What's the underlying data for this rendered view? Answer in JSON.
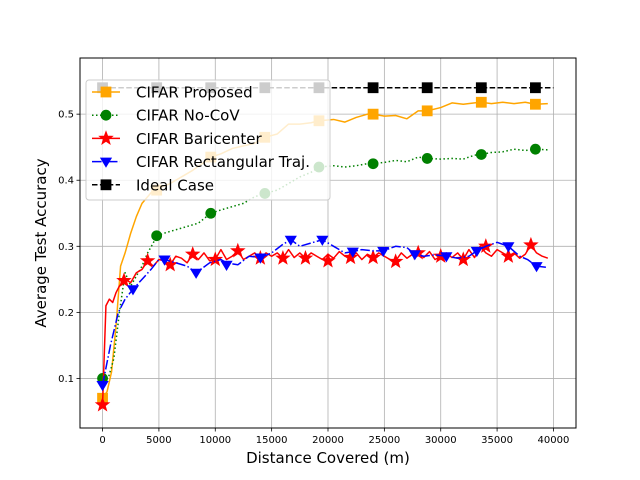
{
  "chart_data": {
    "type": "line",
    "title": "",
    "xlabel": "Distance Covered (m)",
    "ylabel": "Average Test Accuracy",
    "xlim": [
      -2000,
      42000
    ],
    "ylim": [
      0.025,
      0.585
    ],
    "xticks": [
      0,
      5000,
      10000,
      15000,
      20000,
      25000,
      30000,
      35000,
      40000
    ],
    "yticks": [
      0.1,
      0.2,
      0.3,
      0.4,
      0.5
    ],
    "grid": true,
    "legend_position": "upper-left",
    "series": [
      {
        "name": "CIFAR Proposed",
        "color": "#FFA500",
        "linestyle": "solid",
        "marker": "square",
        "x": [
          0,
          400,
          800,
          1200,
          1600,
          2000,
          2500,
          3000,
          3500,
          4000,
          4500,
          5000,
          6000,
          7000,
          8000,
          9000,
          9600,
          10500,
          11500,
          12500,
          13500,
          14400,
          15500,
          16500,
          17500,
          18500,
          19200,
          20500,
          21500,
          22500,
          23500,
          24000,
          25000,
          26000,
          27000,
          28000,
          28800,
          30000,
          31000,
          32000,
          33000,
          33600,
          34500,
          35500,
          36500,
          37500,
          38400,
          39500
        ],
        "y": [
          0.07,
          0.08,
          0.11,
          0.18,
          0.27,
          0.29,
          0.32,
          0.345,
          0.365,
          0.375,
          0.385,
          0.388,
          0.395,
          0.405,
          0.415,
          0.427,
          0.435,
          0.44,
          0.448,
          0.452,
          0.456,
          0.465,
          0.47,
          0.485,
          0.485,
          0.487,
          0.49,
          0.492,
          0.488,
          0.495,
          0.5,
          0.5,
          0.497,
          0.498,
          0.493,
          0.505,
          0.505,
          0.51,
          0.517,
          0.515,
          0.517,
          0.518,
          0.516,
          0.518,
          0.516,
          0.518,
          0.515,
          0.516
        ],
        "marker_x": [
          0,
          4800,
          9600,
          14400,
          19200,
          24000,
          28800,
          33600,
          38400
        ],
        "marker_y": [
          0.07,
          0.385,
          0.435,
          0.465,
          0.49,
          0.5,
          0.505,
          0.518,
          0.515
        ]
      },
      {
        "name": "CIFAR No-CoV",
        "color": "#008000",
        "linestyle": "dotted",
        "marker": "circle",
        "x": [
          0,
          500,
          1000,
          1500,
          2000,
          2500,
          3000,
          3500,
          4000,
          4500,
          4800,
          5500,
          6500,
          7500,
          8500,
          9600,
          10500,
          11500,
          12500,
          13500,
          14400,
          15500,
          16500,
          17500,
          18500,
          19200,
          20500,
          21500,
          22500,
          23500,
          24000,
          25000,
          26000,
          27000,
          28000,
          28800,
          30000,
          31000,
          32000,
          33000,
          33600,
          34500,
          35500,
          36500,
          37500,
          38400,
          39500
        ],
        "y": [
          0.1,
          0.1,
          0.13,
          0.2,
          0.26,
          0.24,
          0.255,
          0.27,
          0.29,
          0.305,
          0.316,
          0.32,
          0.325,
          0.33,
          0.335,
          0.35,
          0.355,
          0.36,
          0.365,
          0.375,
          0.38,
          0.385,
          0.395,
          0.405,
          0.412,
          0.42,
          0.422,
          0.42,
          0.422,
          0.425,
          0.425,
          0.427,
          0.43,
          0.428,
          0.435,
          0.433,
          0.432,
          0.433,
          0.432,
          0.438,
          0.439,
          0.442,
          0.443,
          0.447,
          0.445,
          0.447,
          0.446
        ],
        "marker_x": [
          0,
          4800,
          9600,
          14400,
          19200,
          24000,
          28800,
          33600,
          38400
        ],
        "marker_y": [
          0.1,
          0.316,
          0.35,
          0.38,
          0.42,
          0.425,
          0.433,
          0.439,
          0.447
        ]
      },
      {
        "name": "CIFAR Baricenter",
        "color": "#FF0000",
        "linestyle": "solid",
        "marker": "star",
        "x": [
          0,
          300,
          600,
          900,
          1200,
          1500,
          2000,
          2500,
          3000,
          3500,
          4000,
          4500,
          5000,
          5500,
          6000,
          6500,
          7000,
          7500,
          8000,
          8500,
          9000,
          9500,
          10000,
          10500,
          11000,
          11500,
          12000,
          12500,
          13000,
          13500,
          14000,
          14500,
          15000,
          15500,
          16000,
          16500,
          17000,
          17500,
          18000,
          18500,
          19000,
          19500,
          20000,
          20500,
          21000,
          21500,
          22000,
          22500,
          23000,
          23500,
          24000,
          24500,
          25000,
          25500,
          26000,
          26500,
          27000,
          27500,
          28000,
          28500,
          29000,
          29500,
          30000,
          30500,
          31000,
          31500,
          32000,
          32500,
          33000,
          33500,
          34000,
          34500,
          35000,
          35500,
          36000,
          36500,
          37000,
          37500,
          38000,
          38500,
          39000,
          39500
        ],
        "y": [
          0.06,
          0.21,
          0.22,
          0.215,
          0.23,
          0.24,
          0.25,
          0.245,
          0.26,
          0.265,
          0.278,
          0.27,
          0.28,
          0.278,
          0.272,
          0.285,
          0.282,
          0.275,
          0.288,
          0.28,
          0.29,
          0.278,
          0.28,
          0.295,
          0.28,
          0.285,
          0.293,
          0.28,
          0.285,
          0.29,
          0.282,
          0.29,
          0.285,
          0.29,
          0.282,
          0.295,
          0.283,
          0.29,
          0.282,
          0.29,
          0.285,
          0.28,
          0.288,
          0.282,
          0.292,
          0.285,
          0.283,
          0.29,
          0.28,
          0.288,
          0.283,
          0.29,
          0.285,
          0.28,
          0.278,
          0.29,
          0.282,
          0.288,
          0.29,
          0.283,
          0.292,
          0.28,
          0.285,
          0.29,
          0.283,
          0.29,
          0.28,
          0.295,
          0.283,
          0.3,
          0.29,
          0.285,
          0.295,
          0.29,
          0.285,
          0.29,
          0.282,
          0.288,
          0.302,
          0.29,
          0.285,
          0.282
        ],
        "marker_x": [
          0,
          1900,
          4000,
          6000,
          8000,
          10000,
          12000,
          14000,
          16000,
          18000,
          20000,
          22000,
          24000,
          26000,
          28000,
          30000,
          32000,
          34000,
          36000,
          38000
        ],
        "marker_y": [
          0.06,
          0.248,
          0.278,
          0.272,
          0.288,
          0.28,
          0.293,
          0.282,
          0.282,
          0.282,
          0.278,
          0.283,
          0.283,
          0.277,
          0.29,
          0.285,
          0.28,
          0.3,
          0.285,
          0.302
        ]
      },
      {
        "name": "CIFAR Rectangular Traj.",
        "color": "#0000FF",
        "linestyle": "dashdot",
        "marker": "triangle_down",
        "x": [
          0,
          700,
          1400,
          2000,
          2700,
          3500,
          4300,
          5000,
          5500,
          6500,
          7500,
          8300,
          9500,
          10500,
          11000,
          12000,
          13000,
          14000,
          15000,
          16000,
          16700,
          17500,
          18500,
          19500,
          20500,
          21500,
          22200,
          23000,
          24000,
          24900,
          26000,
          27000,
          27700,
          28500,
          29500,
          30500,
          31500,
          32500,
          33200,
          34000,
          35000,
          36000,
          37000,
          37700,
          38500,
          39500
        ],
        "y": [
          0.09,
          0.15,
          0.2,
          0.22,
          0.235,
          0.25,
          0.265,
          0.28,
          0.28,
          0.275,
          0.27,
          0.26,
          0.275,
          0.28,
          0.275,
          0.272,
          0.285,
          0.283,
          0.29,
          0.303,
          0.31,
          0.3,
          0.305,
          0.31,
          0.3,
          0.29,
          0.292,
          0.295,
          0.293,
          0.293,
          0.3,
          0.298,
          0.288,
          0.285,
          0.287,
          0.285,
          0.282,
          0.285,
          0.293,
          0.3,
          0.306,
          0.3,
          0.285,
          0.28,
          0.27,
          0.268
        ],
        "marker_x": [
          0,
          2700,
          5500,
          8300,
          11000,
          14000,
          16700,
          19500,
          22200,
          24900,
          27700,
          30500,
          33200,
          36000,
          38500
        ],
        "marker_y": [
          0.09,
          0.235,
          0.28,
          0.26,
          0.272,
          0.283,
          0.31,
          0.31,
          0.292,
          0.293,
          0.288,
          0.285,
          0.293,
          0.3,
          0.27
        ]
      },
      {
        "name": "Ideal Case",
        "color": "#000000",
        "linestyle": "dashed",
        "marker": "square",
        "x": [
          0,
          40000
        ],
        "y": [
          0.54,
          0.54
        ],
        "marker_x": [
          0,
          4800,
          9600,
          14400,
          19200,
          24000,
          28800,
          33600,
          38400
        ],
        "marker_y": [
          0.54,
          0.54,
          0.54,
          0.54,
          0.54,
          0.54,
          0.54,
          0.54,
          0.54
        ]
      }
    ]
  }
}
